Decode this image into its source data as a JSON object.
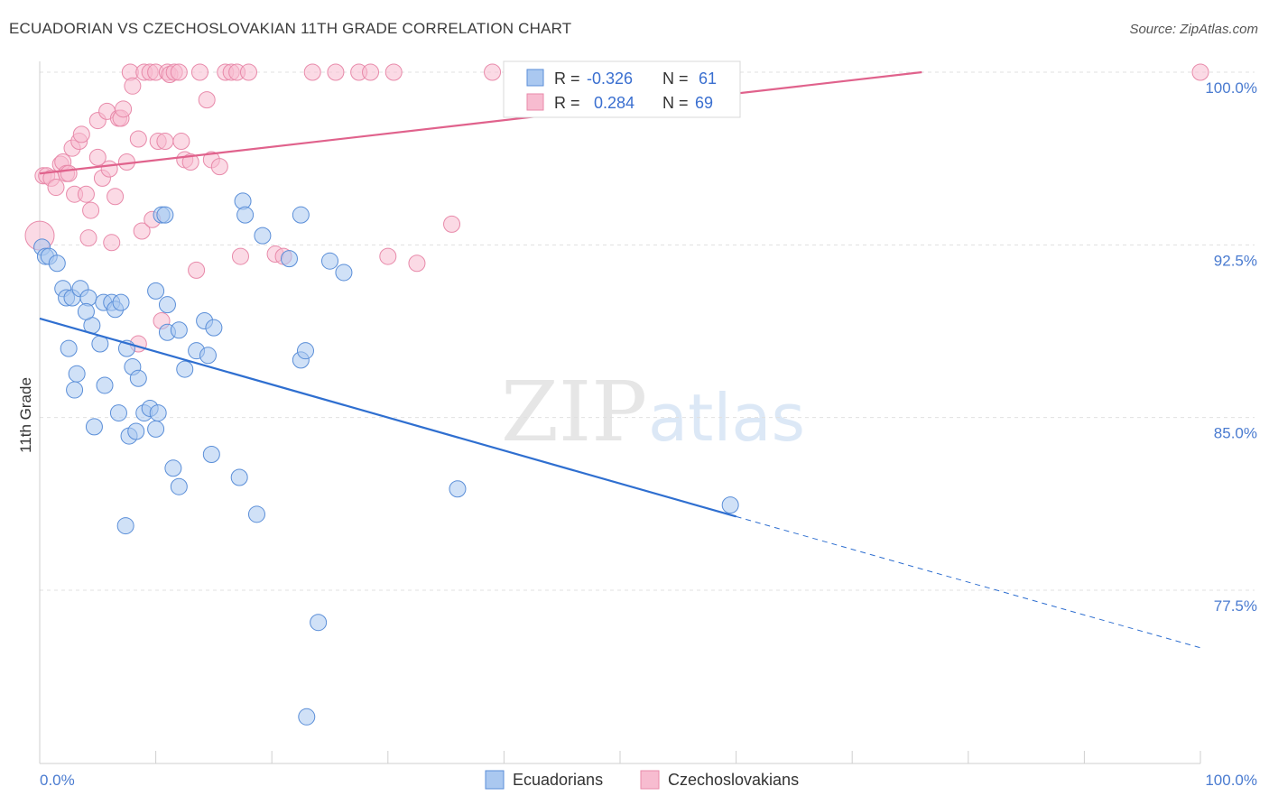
{
  "header": {
    "title": "ECUADORIAN VS CZECHOSLOVAKIAN 11TH GRADE CORRELATION CHART",
    "source": "Source: ZipAtlas.com"
  },
  "watermark": {
    "zip": "ZIP",
    "atlas": "atlas"
  },
  "stats": {
    "r_label": "R =",
    "n_label": "N =",
    "ecuadorians": {
      "r": "-0.326",
      "n": "61"
    },
    "czechoslovakians": {
      "r": "0.284",
      "n": "69"
    }
  },
  "colors": {
    "blue_fill": "#aac8f0",
    "blue_stroke": "#5a8ed8",
    "blue_line": "#2f6fd0",
    "pink_fill": "#f7bcd0",
    "pink_stroke": "#e88aaa",
    "pink_line": "#e0628c",
    "tick_text": "#4a7bd0",
    "grid": "#e0e0e0"
  },
  "chart_data": {
    "type": "scatter",
    "title": "ECUADORIAN VS CZECHOSLOVAKIAN 11TH GRADE CORRELATION CHART",
    "xlabel": "",
    "ylabel": "11th Grade",
    "xlim": [
      0,
      100
    ],
    "ylim": [
      71,
      101
    ],
    "x_tick_labels": [
      "0.0%",
      "100.0%"
    ],
    "y_ticks": [
      {
        "value": 100.0,
        "label": "100.0%"
      },
      {
        "value": 92.5,
        "label": "92.5%"
      },
      {
        "value": 85.0,
        "label": "85.0%"
      },
      {
        "value": 77.5,
        "label": "77.5%"
      }
    ],
    "legend": {
      "position": "bottom",
      "entries": [
        "Ecuadorians",
        "Czechoslovakians"
      ]
    },
    "grid": true,
    "series": [
      {
        "name": "Ecuadorians",
        "color": "#5a8ed8",
        "trend": {
          "x0": 0,
          "y0": 89.3,
          "x1": 60,
          "y1": 80.7,
          "dashed_to_x": 100,
          "dashed_to_y": 75.0
        },
        "points": [
          [
            0.2,
            92.4
          ],
          [
            0.5,
            92.0
          ],
          [
            0.8,
            92.0
          ],
          [
            1.5,
            91.7
          ],
          [
            2.0,
            90.6
          ],
          [
            2.3,
            90.2
          ],
          [
            2.8,
            90.2
          ],
          [
            3.5,
            90.6
          ],
          [
            4.2,
            90.2
          ],
          [
            4.5,
            89.0
          ],
          [
            4.0,
            89.6
          ],
          [
            5.5,
            90.0
          ],
          [
            6.2,
            90.0
          ],
          [
            6.5,
            89.7
          ],
          [
            7.0,
            90.0
          ],
          [
            2.5,
            88.0
          ],
          [
            3.2,
            86.9
          ],
          [
            3.0,
            86.2
          ],
          [
            5.2,
            88.2
          ],
          [
            7.5,
            88.0
          ],
          [
            8.0,
            87.2
          ],
          [
            8.5,
            86.7
          ],
          [
            9.0,
            85.2
          ],
          [
            9.5,
            85.4
          ],
          [
            10.0,
            90.5
          ],
          [
            10.5,
            93.8
          ],
          [
            11.0,
            89.9
          ],
          [
            11.0,
            88.7
          ],
          [
            12.0,
            88.8
          ],
          [
            12.5,
            87.1
          ],
          [
            13.5,
            87.9
          ],
          [
            14.2,
            89.2
          ],
          [
            14.5,
            87.7
          ],
          [
            15.0,
            88.9
          ],
          [
            4.7,
            84.6
          ],
          [
            5.6,
            86.4
          ],
          [
            6.8,
            85.2
          ],
          [
            7.7,
            84.2
          ],
          [
            8.3,
            84.4
          ],
          [
            10.0,
            84.5
          ],
          [
            10.2,
            85.2
          ],
          [
            11.5,
            82.8
          ],
          [
            12.0,
            82.0
          ],
          [
            14.8,
            83.4
          ],
          [
            17.5,
            94.4
          ],
          [
            17.7,
            93.8
          ],
          [
            19.2,
            92.9
          ],
          [
            21.5,
            91.9
          ],
          [
            22.5,
            93.8
          ],
          [
            22.5,
            87.5
          ],
          [
            22.9,
            87.9
          ],
          [
            25.0,
            91.8
          ],
          [
            26.2,
            91.3
          ],
          [
            7.4,
            80.3
          ],
          [
            17.2,
            82.4
          ],
          [
            18.7,
            80.8
          ],
          [
            24.0,
            76.1
          ],
          [
            23.0,
            72.0
          ],
          [
            36.0,
            81.9
          ],
          [
            59.5,
            81.2
          ],
          [
            10.8,
            93.8
          ]
        ]
      },
      {
        "name": "Czechoslovakians",
        "color": "#e88aaa",
        "trend": {
          "x0": 0,
          "y0": 95.6,
          "x1": 76,
          "y1": 100.0
        },
        "points": [
          [
            0.0,
            92.9
          ],
          [
            0.3,
            95.5
          ],
          [
            0.6,
            95.5
          ],
          [
            1.0,
            95.4
          ],
          [
            1.4,
            95.0
          ],
          [
            1.8,
            96.0
          ],
          [
            2.0,
            96.1
          ],
          [
            2.3,
            95.6
          ],
          [
            2.5,
            95.6
          ],
          [
            2.8,
            96.7
          ],
          [
            3.0,
            94.7
          ],
          [
            3.4,
            97.0
          ],
          [
            3.6,
            97.3
          ],
          [
            4.0,
            94.7
          ],
          [
            4.2,
            92.8
          ],
          [
            4.4,
            94.0
          ],
          [
            5.0,
            96.3
          ],
          [
            5.0,
            97.9
          ],
          [
            5.4,
            95.4
          ],
          [
            5.8,
            98.3
          ],
          [
            6.0,
            95.8
          ],
          [
            6.2,
            92.6
          ],
          [
            6.5,
            94.6
          ],
          [
            6.8,
            98.0
          ],
          [
            7.0,
            98.0
          ],
          [
            7.2,
            98.4
          ],
          [
            7.5,
            96.1
          ],
          [
            7.8,
            100.0
          ],
          [
            8.0,
            99.4
          ],
          [
            8.5,
            97.1
          ],
          [
            8.8,
            93.1
          ],
          [
            9.0,
            100.0
          ],
          [
            9.5,
            100.0
          ],
          [
            9.7,
            93.6
          ],
          [
            10.0,
            100.0
          ],
          [
            10.2,
            97.0
          ],
          [
            10.5,
            89.2
          ],
          [
            10.8,
            97.0
          ],
          [
            11.0,
            100.0
          ],
          [
            11.2,
            99.9
          ],
          [
            11.6,
            100.0
          ],
          [
            12.0,
            100.0
          ],
          [
            12.2,
            97.0
          ],
          [
            12.5,
            96.2
          ],
          [
            13.0,
            96.1
          ],
          [
            13.5,
            91.4
          ],
          [
            13.8,
            100.0
          ],
          [
            14.4,
            98.8
          ],
          [
            14.8,
            96.2
          ],
          [
            15.5,
            95.9
          ],
          [
            16.0,
            100.0
          ],
          [
            16.5,
            100.0
          ],
          [
            17.0,
            100.0
          ],
          [
            17.3,
            92.0
          ],
          [
            18.0,
            100.0
          ],
          [
            20.3,
            92.1
          ],
          [
            21.0,
            92.0
          ],
          [
            23.5,
            100.0
          ],
          [
            25.5,
            100.0
          ],
          [
            27.5,
            100.0
          ],
          [
            28.5,
            100.0
          ],
          [
            30.5,
            100.0
          ],
          [
            30.0,
            92.0
          ],
          [
            32.5,
            91.7
          ],
          [
            35.5,
            93.4
          ],
          [
            39.0,
            100.0
          ],
          [
            42.5,
            100.0
          ],
          [
            100.0,
            100.0
          ],
          [
            8.5,
            88.2
          ]
        ]
      }
    ]
  },
  "legend": {
    "ecuadorians": "Ecuadorians",
    "czechoslovakians": "Czechoslovakians"
  }
}
